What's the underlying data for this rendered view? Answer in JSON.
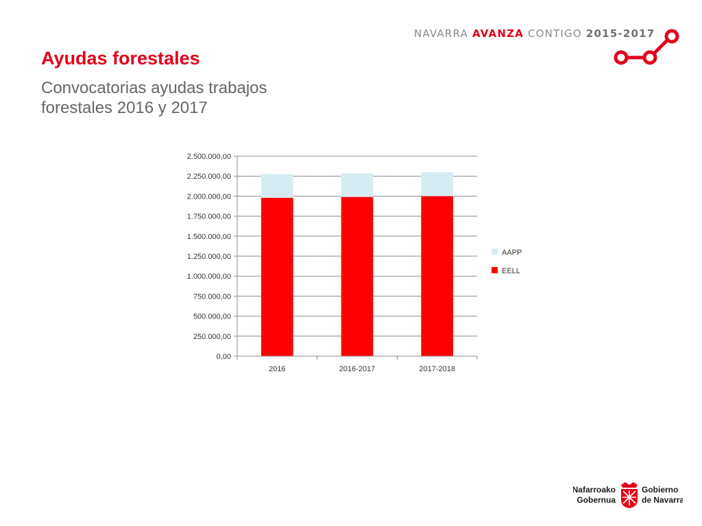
{
  "header": {
    "tagline_part1": "NAVARRA",
    "tagline_part2": "AVANZA",
    "tagline_part3": "CONTIGO",
    "tagline_years": "2015-2017",
    "logo_icon": "nodes-link-icon",
    "accent_color": "#e2001a"
  },
  "slide": {
    "title": "Ayudas forestales",
    "subtitle": "Convocatorias ayudas trabajos forestales 2016 y 2017"
  },
  "chart_data": {
    "type": "bar",
    "stacked": true,
    "categories": [
      "2016",
      "2016-2017",
      "2017-2018"
    ],
    "series": [
      {
        "name": "EELL",
        "color": "#ff0000",
        "values": [
          1980000,
          1990000,
          2000000
        ]
      },
      {
        "name": "AAPP",
        "color": "#d6ecf3",
        "values": [
          295000,
          295000,
          300000
        ]
      }
    ],
    "ylim": [
      0,
      2500000
    ],
    "yticks": [
      0,
      250000,
      500000,
      750000,
      1000000,
      1250000,
      1500000,
      1750000,
      2000000,
      2250000,
      2500000
    ],
    "ytick_labels": [
      "0,00",
      "250.000,00",
      "500.000,00",
      "750.000,00",
      "1.000.000,00",
      "1.250.000,00",
      "1.500.000,00",
      "1.750.000,00",
      "2.000.000,00",
      "2.250.000,00",
      "2.500.000,00"
    ],
    "legend_order": [
      "AAPP",
      "EELL"
    ],
    "legend_position": "right",
    "grid": true
  },
  "footer": {
    "logo_left_line1": "Nafarroako",
    "logo_left_line2": "Gobernua",
    "logo_right_line1": "Gobierno",
    "logo_right_line2": "de Navarra",
    "crest_icon": "navarra-coat-of-arms-icon"
  }
}
